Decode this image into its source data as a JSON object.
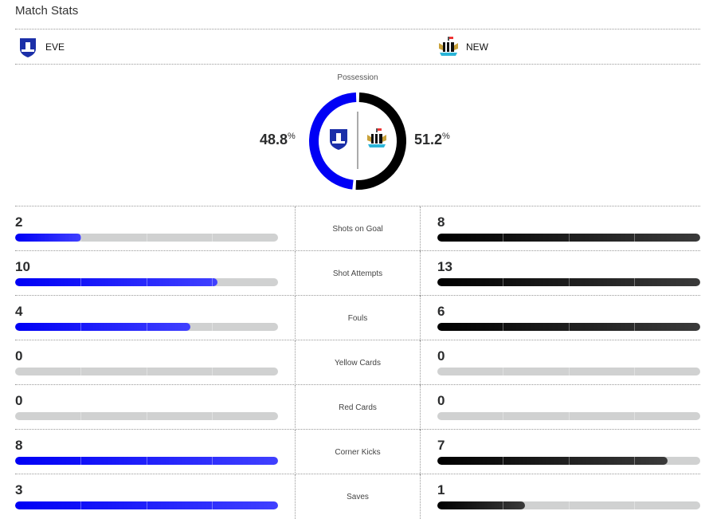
{
  "title": "Match Stats",
  "home": {
    "abbr": "EVE",
    "color": "#0000f5",
    "possession": "48.8",
    "possession_value": 48.8
  },
  "away": {
    "abbr": "NEW",
    "color": "#000000",
    "possession": "51.2",
    "possession_value": 51.2
  },
  "possession_label": "Possession",
  "pct_symbol": "%",
  "stats": [
    {
      "label": "Shots on Goal",
      "home": "2",
      "away": "8"
    },
    {
      "label": "Shot Attempts",
      "home": "10",
      "away": "13"
    },
    {
      "label": "Fouls",
      "home": "4",
      "away": "6"
    },
    {
      "label": "Yellow Cards",
      "home": "0",
      "away": "0"
    },
    {
      "label": "Red Cards",
      "home": "0",
      "away": "0"
    },
    {
      "label": "Corner Kicks",
      "home": "8",
      "away": "7"
    },
    {
      "label": "Saves",
      "home": "3",
      "away": "1"
    }
  ]
}
